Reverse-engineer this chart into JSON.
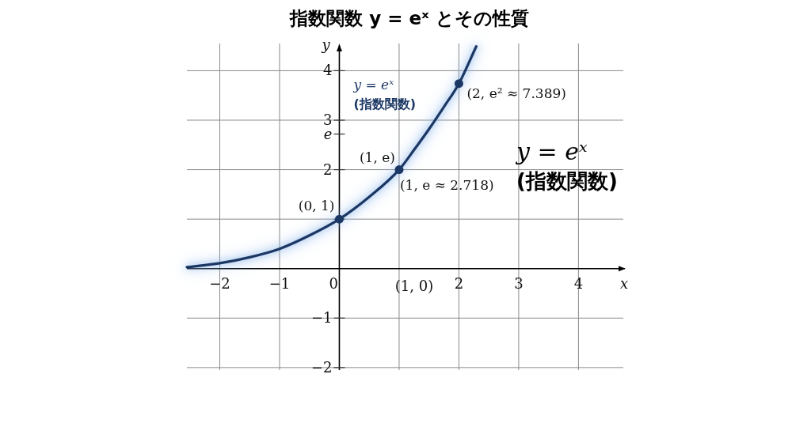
{
  "chart_data": {
    "type": "line",
    "title": "指数関数 y = eˣ とその性質",
    "xlabel": "x",
    "ylabel": "y",
    "xlim": [
      -2.55,
      4.75
    ],
    "ylim": [
      -2.05,
      4.55
    ],
    "xticks": [
      -2,
      -1,
      0,
      {
        "value": 1,
        "label": null
      },
      2,
      3,
      4
    ],
    "yticks": [
      -2,
      -1,
      {
        "value": 1,
        "label": null
      },
      2,
      {
        "value": 2.72,
        "label": "e"
      },
      3,
      4
    ],
    "grid": true,
    "series": [
      {
        "name": "y = eˣ\n(指数関数)",
        "color": "#1b3764",
        "x": [
          -2.55,
          -2,
          -1.5,
          -1,
          -0.5,
          0,
          0.5,
          1,
          1.25,
          1.5,
          1.75,
          2,
          2.29
        ],
        "values": [
          0.03,
          0.11,
          0.23,
          0.4,
          0.67,
          1,
          1.45,
          2,
          2.4,
          2.82,
          3.27,
          3.74,
          4.49
        ]
      },
      {
        "type": "scatter",
        "marker": "circle",
        "color": "#1b3764",
        "x": [
          0,
          1,
          2
        ],
        "values": [
          1,
          2,
          3.74
        ]
      }
    ],
    "annotations": [
      {
        "text": "(0, 1)",
        "x": 0,
        "y": 1
      },
      {
        "text": "(1, e)",
        "x": 1,
        "y": 2
      },
      {
        "text": "(1, e ≈ 2.718)",
        "x": 1,
        "y": 2
      },
      {
        "text": "(2, e² ≈ 7.389)",
        "x": 2,
        "y": 3.74
      },
      "(1, 0)",
      "y = eˣ\n(指数関数)"
    ]
  }
}
